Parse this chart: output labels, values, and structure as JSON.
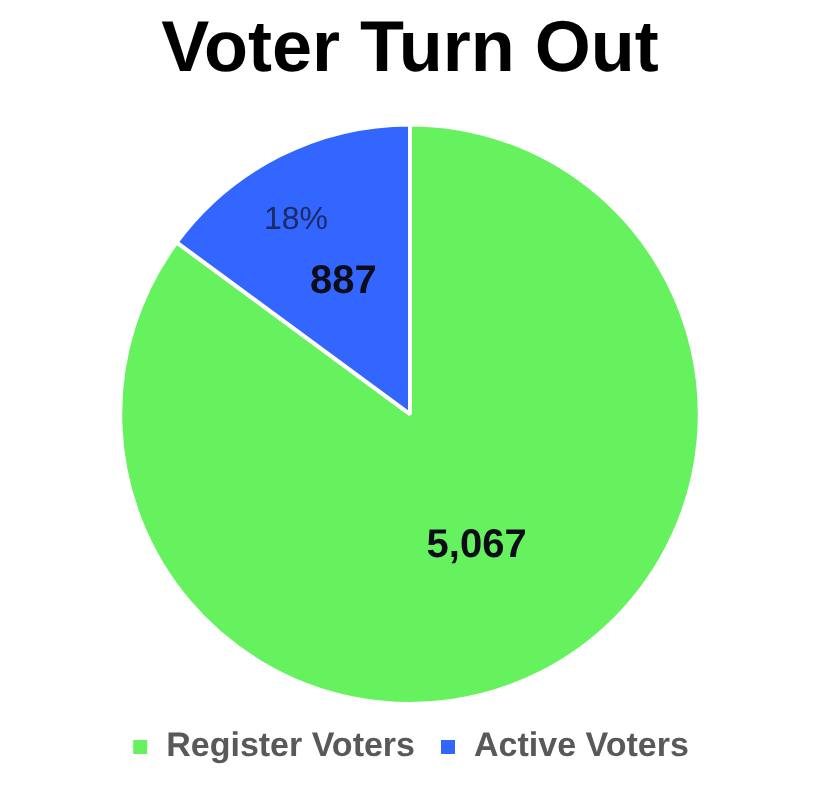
{
  "chart_data": {
    "type": "pie",
    "title": "Voter Turn Out",
    "categories": [
      "Register Voters",
      "Active Voters"
    ],
    "values": [
      5067,
      887
    ],
    "colors": [
      "#66f25e",
      "#3366ff"
    ],
    "value_labels": [
      "5,067",
      "887"
    ],
    "annotations": [
      "18%"
    ],
    "legend": "bottom"
  }
}
